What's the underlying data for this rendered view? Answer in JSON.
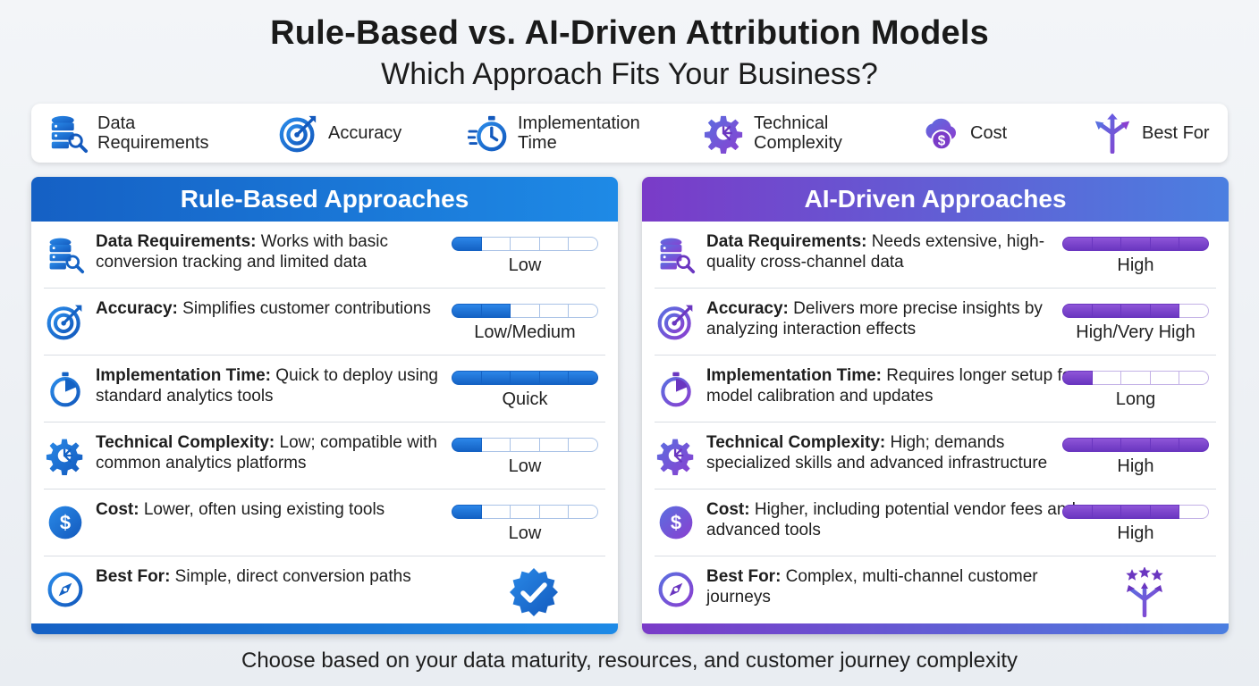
{
  "title": "Rule-Based vs. AI-Driven Attribution Models",
  "subtitle": "Which Approach Fits Your Business?",
  "legend": [
    {
      "label": "Data Requirements",
      "icon": "database-search-icon"
    },
    {
      "label": "Accuracy",
      "icon": "target-icon"
    },
    {
      "label": "Implementation Time",
      "icon": "stopwatch-icon"
    },
    {
      "label": "Technical Complexity",
      "icon": "gear-circuit-icon"
    },
    {
      "label": "Cost",
      "icon": "cloud-dollar-icon"
    },
    {
      "label": "Best For",
      "icon": "split-arrows-icon"
    }
  ],
  "colors": {
    "rule_accent": "#1462c4",
    "ai_accent": "#6a36c0"
  },
  "rule": {
    "heading": "Rule-Based Approaches",
    "rows": [
      {
        "term": "Data Requirements:",
        "desc": " Works with basic conversion tracking and limited data",
        "level": "Low",
        "filled": 1
      },
      {
        "term": "Accuracy:",
        "desc": " Simplifies customer contributions",
        "level": "Low/Medium",
        "filled": 2
      },
      {
        "term": "Implementation Time:",
        "desc": " Quick to deploy using standard analytics tools",
        "level": "Quick",
        "filled": 5
      },
      {
        "term": "Technical Complexity:",
        "desc": " Low; compatible with common analytics platforms",
        "level": "Low",
        "filled": 1
      },
      {
        "term": "Cost:",
        "desc": " Lower, often using existing tools",
        "level": "Low",
        "filled": 1
      },
      {
        "term": "Best For:",
        "desc": " Simple, direct conversion paths",
        "badge": "check-badge-icon"
      }
    ]
  },
  "ai": {
    "heading": "AI-Driven Approaches",
    "rows": [
      {
        "term": "Data Requirements:",
        "desc": " Needs extensive, high-quality cross-channel data",
        "level": "High",
        "filled": 5
      },
      {
        "term": "Accuracy:",
        "desc": " Delivers more precise insights by analyzing interaction effects",
        "level": "High/Very High",
        "filled": 4
      },
      {
        "term": "Implementation Time:",
        "desc": " Requires longer setup for model calibration and updates",
        "level": "Long",
        "filled": 1
      },
      {
        "term": "Technical Complexity:",
        "desc": " High; demands specialized skills and advanced infrastructure",
        "level": "High",
        "filled": 5
      },
      {
        "term": "Cost:",
        "desc": " Higher, including potential vendor fees and advanced tools",
        "level": "High",
        "filled": 4
      },
      {
        "term": "Best For:",
        "desc": " Complex, multi-channel customer journeys",
        "badge": "stars-branch-icon"
      }
    ]
  },
  "footer": "Choose based on your data maturity, resources, and customer journey complexity"
}
